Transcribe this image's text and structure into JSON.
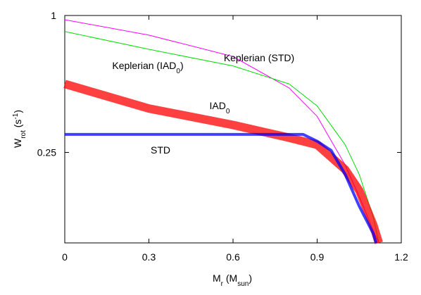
{
  "chart_data": {
    "type": "line",
    "log_y": true,
    "xlabel": [
      {
        "t": "M"
      },
      {
        "sub": "r"
      },
      {
        "t": " (M"
      },
      {
        "sub": "sun"
      },
      {
        "t": ")"
      }
    ],
    "ylabel": [
      {
        "t": "W"
      },
      {
        "sub": "rot"
      },
      {
        "t": " (s"
      },
      {
        "sup": "-1"
      },
      {
        "t": ")"
      }
    ],
    "xlim": [
      0,
      1.2
    ],
    "xticks": [
      0,
      0.3,
      0.6,
      0.9,
      1.2
    ],
    "ylim": [
      0.1,
      1
    ],
    "yticks": [
      0.25,
      1
    ],
    "series": [
      {
        "name": [
          {
            "t": "Keplerian (STD)"
          }
        ],
        "color": "#ff00ff",
        "width": 1,
        "x": [
          0,
          0.3,
          0.6,
          0.8,
          0.9,
          1.0,
          1.05,
          1.1,
          1.12
        ],
        "values": [
          0.958,
          0.82,
          0.66,
          0.48,
          0.36,
          0.22,
          0.16,
          0.113,
          0.1
        ]
      },
      {
        "name": [
          {
            "t": "Keplerian (IAD"
          },
          {
            "sub": "0"
          },
          {
            "t": ")"
          }
        ],
        "color": "#00dd00",
        "width": 1,
        "x": [
          0,
          0.3,
          0.6,
          0.8,
          0.9,
          1.0,
          1.05,
          1.1,
          1.12
        ],
        "values": [
          0.85,
          0.71,
          0.6,
          0.5,
          0.4,
          0.27,
          0.2,
          0.13,
          0.1
        ]
      },
      {
        "name": [
          {
            "t": "IAD"
          },
          {
            "sub": "0"
          }
        ],
        "color": "#ff0000",
        "width": 12,
        "x": [
          0,
          0.3,
          0.6,
          0.8,
          0.9,
          1.0,
          1.05,
          1.1,
          1.12
        ],
        "values": [
          0.5,
          0.39,
          0.33,
          0.29,
          0.27,
          0.21,
          0.17,
          0.12,
          0.1
        ]
      },
      {
        "name": [
          {
            "t": "STD"
          }
        ],
        "color": "#0000ff",
        "width": 4,
        "x": [
          0,
          0.3,
          0.6,
          0.85,
          0.9,
          0.95,
          1.0,
          1.05,
          1.1,
          1.11
        ],
        "values": [
          0.3,
          0.3,
          0.3,
          0.3,
          0.28,
          0.255,
          0.2,
          0.145,
          0.11,
          0.1
        ]
      }
    ]
  }
}
